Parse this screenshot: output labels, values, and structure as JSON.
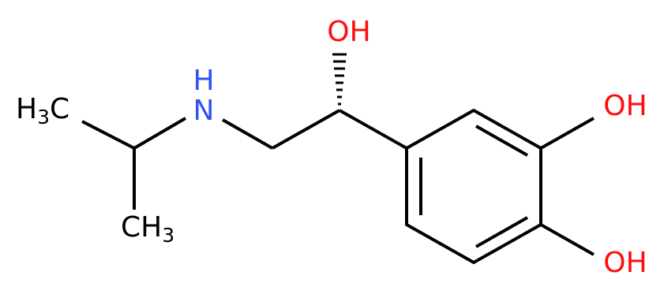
{
  "nodes": {
    "methyl_top": [
      "H",
      "3",
      "C"
    ],
    "methyl_bottom": [
      "CH",
      "3"
    ],
    "amine": [
      "N",
      "H"
    ],
    "hydroxyl_chain": "OH",
    "hydroxyl_ring_upper": "OH",
    "hydroxyl_ring_lower": "OH"
  }
}
